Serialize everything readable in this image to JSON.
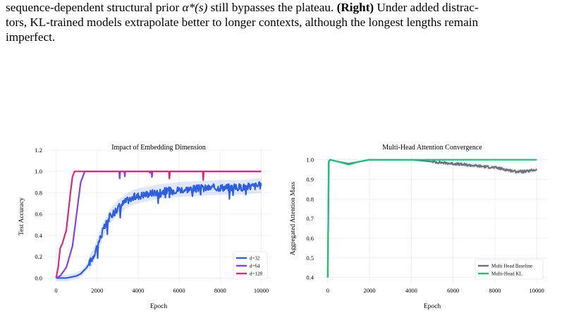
{
  "caption": {
    "line1_pre": "sequence-dependent structural prior ",
    "alpha": "α*(s)",
    "line1_post": " still bypasses the plateau. ",
    "right_label": "(Right)",
    "line2": " Under added distrac-",
    "line3": "tors, KL-trained models extrapolate better to longer contexts, although the longest lengths remain",
    "line4": "imperfect."
  },
  "chart_data": [
    {
      "type": "line",
      "title": "Impact of Embedding Dimension",
      "xlabel": "Epoch",
      "ylabel": "Test Accuracy",
      "xlim": [
        -500,
        10500
      ],
      "ylim": [
        -0.05,
        1.2
      ],
      "xticks": [
        0,
        2000,
        4000,
        6000,
        8000,
        10000
      ],
      "yticks": [
        0.0,
        0.2,
        0.4,
        0.6,
        0.8,
        1.0,
        1.2
      ],
      "ytick_labels": [
        "0.0",
        "0.2",
        "0.4",
        "0.6",
        "0.8",
        "1.0",
        "1.2"
      ],
      "grid": true,
      "legend_position": "bottom-right",
      "series": [
        {
          "name": "d=32",
          "color": "#2f5fdc",
          "x": [
            0,
            500,
            1000,
            1200,
            1500,
            1800,
            2000,
            2300,
            2600,
            3000,
            3400,
            3800,
            4200,
            5000,
            6000,
            7000,
            8000,
            9000,
            10000
          ],
          "y": [
            0.0,
            0.0,
            0.02,
            0.04,
            0.1,
            0.2,
            0.3,
            0.45,
            0.57,
            0.66,
            0.72,
            0.76,
            0.78,
            0.81,
            0.83,
            0.84,
            0.85,
            0.85,
            0.87
          ]
        },
        {
          "name": "d=64",
          "color": "#8a3ee6",
          "x": [
            0,
            200,
            500,
            800,
            1000,
            1200,
            1400,
            2000,
            4000,
            6000,
            8000,
            10000
          ],
          "y": [
            0.0,
            0.02,
            0.1,
            0.3,
            0.6,
            0.9,
            1.0,
            1.0,
            1.0,
            1.0,
            1.0,
            1.0
          ]
        },
        {
          "name": "d=128",
          "color": "#d62a7a",
          "x": [
            0,
            100,
            200,
            300,
            500,
            700,
            800,
            900,
            1000,
            2000,
            4000,
            6000,
            8000,
            10000
          ],
          "y": [
            0.0,
            0.1,
            0.28,
            0.32,
            0.45,
            0.8,
            0.95,
            1.0,
            1.0,
            1.0,
            1.0,
            1.0,
            1.0,
            1.0
          ]
        }
      ]
    },
    {
      "type": "line",
      "title": "Multi-Head Attention Convergence",
      "xlabel": "Epoch",
      "ylabel": "Aggregated Attention Mass",
      "xlim": [
        -500,
        10500
      ],
      "ylim": [
        0.37,
        1.02
      ],
      "xticks": [
        0,
        2000,
        4000,
        6000,
        8000,
        10000
      ],
      "yticks": [
        0.4,
        0.5,
        0.6,
        0.7,
        0.8,
        0.9,
        1.0
      ],
      "ytick_labels": [
        "0.4",
        "0.5",
        "0.6",
        "0.7",
        "0.8",
        "0.9",
        "1.0"
      ],
      "grid": true,
      "legend_position": "bottom-right",
      "series": [
        {
          "name": "Multi Head Baseline",
          "color": "#707080",
          "x": [
            0,
            50,
            100,
            500,
            1000,
            1500,
            2000,
            3000,
            4000,
            5000,
            6000,
            7000,
            8000,
            8500,
            9000,
            9500,
            10000
          ],
          "y": [
            0.4,
            0.99,
            1.0,
            0.99,
            0.98,
            0.99,
            1.0,
            1.0,
            1.0,
            0.99,
            0.98,
            0.97,
            0.96,
            0.95,
            0.94,
            0.94,
            0.95
          ]
        },
        {
          "name": "Multi-Head KL",
          "color": "#1fbf7a",
          "x": [
            0,
            50,
            100,
            500,
            1000,
            1500,
            2000,
            3000,
            4000,
            5000,
            6000,
            7000,
            8000,
            9000,
            10000
          ],
          "y": [
            0.4,
            0.99,
            1.0,
            0.99,
            0.975,
            0.99,
            1.0,
            1.0,
            1.0,
            1.0,
            1.0,
            1.0,
            1.0,
            1.0,
            1.0
          ]
        }
      ]
    }
  ]
}
